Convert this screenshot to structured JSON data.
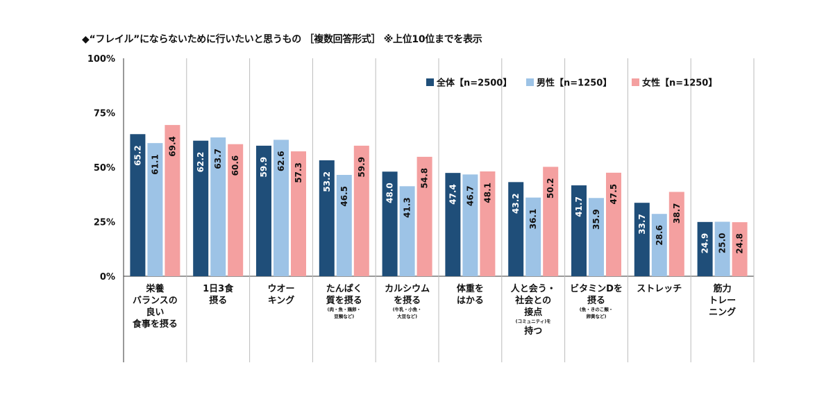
{
  "chart_data": {
    "type": "bar",
    "title": "◆“フレイル”にならないために行いたいと思うもの ［複数回答形式］ ※上位10位までを表示",
    "ylabel": "",
    "xlabel": "",
    "ylim": [
      0,
      100
    ],
    "yticks": [
      "0%",
      "25%",
      "50%",
      "75%",
      "100%"
    ],
    "ytick_values": [
      0,
      25,
      50,
      75,
      100
    ],
    "grid": "vertical category separators",
    "legend_position": "top-right",
    "categories": [
      {
        "lines": [
          "栄養",
          "バランスの",
          "良い",
          "食事を摂る"
        ],
        "sub": []
      },
      {
        "lines": [
          "1日3食",
          "摂る"
        ],
        "sub": []
      },
      {
        "lines": [
          "ウオー",
          "キング"
        ],
        "sub": []
      },
      {
        "lines": [
          "たんぱく",
          "質を摂る"
        ],
        "sub": [
          "(肉・魚・鶏卵・",
          "豆類など)"
        ]
      },
      {
        "lines": [
          "カルシウム",
          "を摂る"
        ],
        "sub": [
          "(牛乳・小魚・",
          "大豆など)"
        ]
      },
      {
        "lines": [
          "体重を",
          "はかる"
        ],
        "sub": []
      },
      {
        "lines": [
          "人と会う・",
          "社会との",
          "接点"
        ],
        "sub": [
          "(コミュニティ)を"
        ],
        "after": [
          "持つ"
        ]
      },
      {
        "lines": [
          "ビタミンDを",
          "摂る"
        ],
        "sub": [
          "(魚・きのこ類・",
          "卵黄など)"
        ]
      },
      {
        "lines": [
          "ストレッチ"
        ],
        "sub": []
      },
      {
        "lines": [
          "筋力",
          "トレー",
          "ニング"
        ],
        "sub": []
      }
    ],
    "series": [
      {
        "name": "全体【n=2500】",
        "color": "#1f4e79",
        "label_color": "#ffffff",
        "values": [
          65.2,
          62.2,
          59.9,
          53.2,
          48.0,
          47.4,
          43.2,
          41.7,
          33.7,
          24.9
        ],
        "labels": [
          "65.2",
          "62.2",
          "59.9",
          "53.2",
          "48.0",
          "47.4",
          "43.2",
          "41.7",
          "33.7",
          "24.9"
        ]
      },
      {
        "name": "男性【n=1250】",
        "color": "#9dc3e6",
        "label_color": "#111111",
        "values": [
          61.1,
          63.7,
          62.6,
          46.5,
          41.3,
          46.7,
          36.1,
          35.9,
          28.6,
          25.0
        ],
        "labels": [
          "61.1",
          "63.7",
          "62.6",
          "46.5",
          "41.3",
          "46.7",
          "36.1",
          "35.9",
          "28.6",
          "25.0"
        ]
      },
      {
        "name": "女性【n=1250】",
        "color": "#f4a0a0",
        "label_color": "#111111",
        "values": [
          69.4,
          60.6,
          57.3,
          59.9,
          54.8,
          48.1,
          50.2,
          47.5,
          38.7,
          24.8
        ],
        "labels": [
          "69.4",
          "60.6",
          "57.3",
          "59.9",
          "54.8",
          "48.1",
          "50.2",
          "47.5",
          "38.7",
          "24.8"
        ]
      }
    ]
  }
}
